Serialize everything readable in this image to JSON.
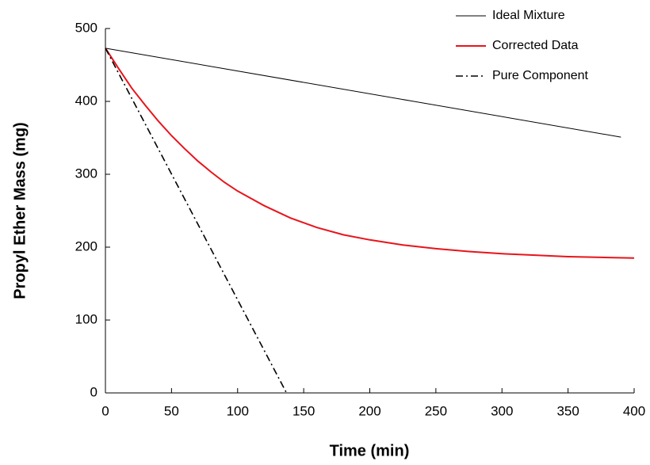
{
  "chart_data": {
    "type": "line",
    "x_label": "Time (min)",
    "y_label": "Propyl Ether Mass (mg)",
    "xlim": [
      0,
      400
    ],
    "ylim": [
      0,
      500
    ],
    "xticks": [
      0,
      50,
      100,
      150,
      200,
      250,
      300,
      350,
      400
    ],
    "yticks": [
      0,
      100,
      200,
      300,
      400,
      500
    ],
    "legend": "top-right",
    "series": [
      {
        "name": "Ideal Mixture",
        "color": "#000000",
        "width": 1,
        "dash": "solid",
        "x": [
          0,
          390
        ],
        "values": [
          473,
          351
        ]
      },
      {
        "name": "Corrected Data",
        "color": "#e8141b",
        "width": 2,
        "dash": "solid",
        "x": [
          0,
          10,
          20,
          30,
          40,
          50,
          60,
          70,
          80,
          90,
          100,
          120,
          140,
          160,
          180,
          200,
          225,
          250,
          275,
          300,
          325,
          350,
          375,
          400
        ],
        "values": [
          473,
          445,
          418,
          395,
          373,
          353,
          335,
          318,
          303,
          289,
          277,
          257,
          240,
          227,
          217,
          210,
          203,
          198,
          194,
          191,
          189,
          187,
          186,
          185
        ]
      },
      {
        "name": "Pure Component",
        "color": "#000000",
        "width": 1.6,
        "dash": "dashdot",
        "x": [
          0,
          137
        ],
        "values": [
          473,
          0
        ]
      }
    ]
  }
}
